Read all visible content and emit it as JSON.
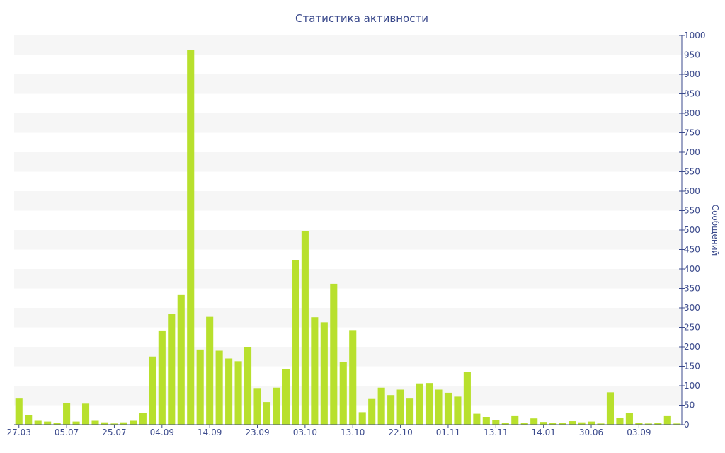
{
  "chart_data": {
    "type": "bar",
    "title": "Статистика активности",
    "xlabel": "",
    "ylabel": "Сообщений",
    "ylim": [
      0,
      1000
    ],
    "y_ticks": [
      0,
      50,
      100,
      150,
      200,
      250,
      300,
      350,
      400,
      450,
      500,
      550,
      600,
      650,
      700,
      750,
      800,
      850,
      900,
      950,
      1000
    ],
    "y_axis_position": "right",
    "grid": "alternating horizontal bands",
    "bar_color": "#b8e02d",
    "x_tick_labels": [
      "27.03",
      "05.07",
      "25.07",
      "04.09",
      "14.09",
      "23.09",
      "03.10",
      "13.10",
      "22.10",
      "01.11",
      "13.11",
      "14.01",
      "30.06",
      "03.09"
    ],
    "x_tick_every": 5,
    "values": [
      67,
      25,
      10,
      8,
      5,
      55,
      8,
      54,
      10,
      6,
      3,
      6,
      10,
      30,
      175,
      242,
      285,
      333,
      962,
      193,
      277,
      190,
      170,
      163,
      200,
      94,
      58,
      95,
      142,
      423,
      498,
      276,
      263,
      362,
      160,
      243,
      32,
      66,
      95,
      76,
      90,
      67,
      106,
      107,
      90,
      82,
      72,
      135,
      28,
      20,
      12,
      5,
      22,
      5,
      16,
      7,
      4,
      4,
      9,
      6,
      8,
      3,
      83,
      17,
      30,
      4,
      3,
      5,
      22,
      3
    ]
  }
}
